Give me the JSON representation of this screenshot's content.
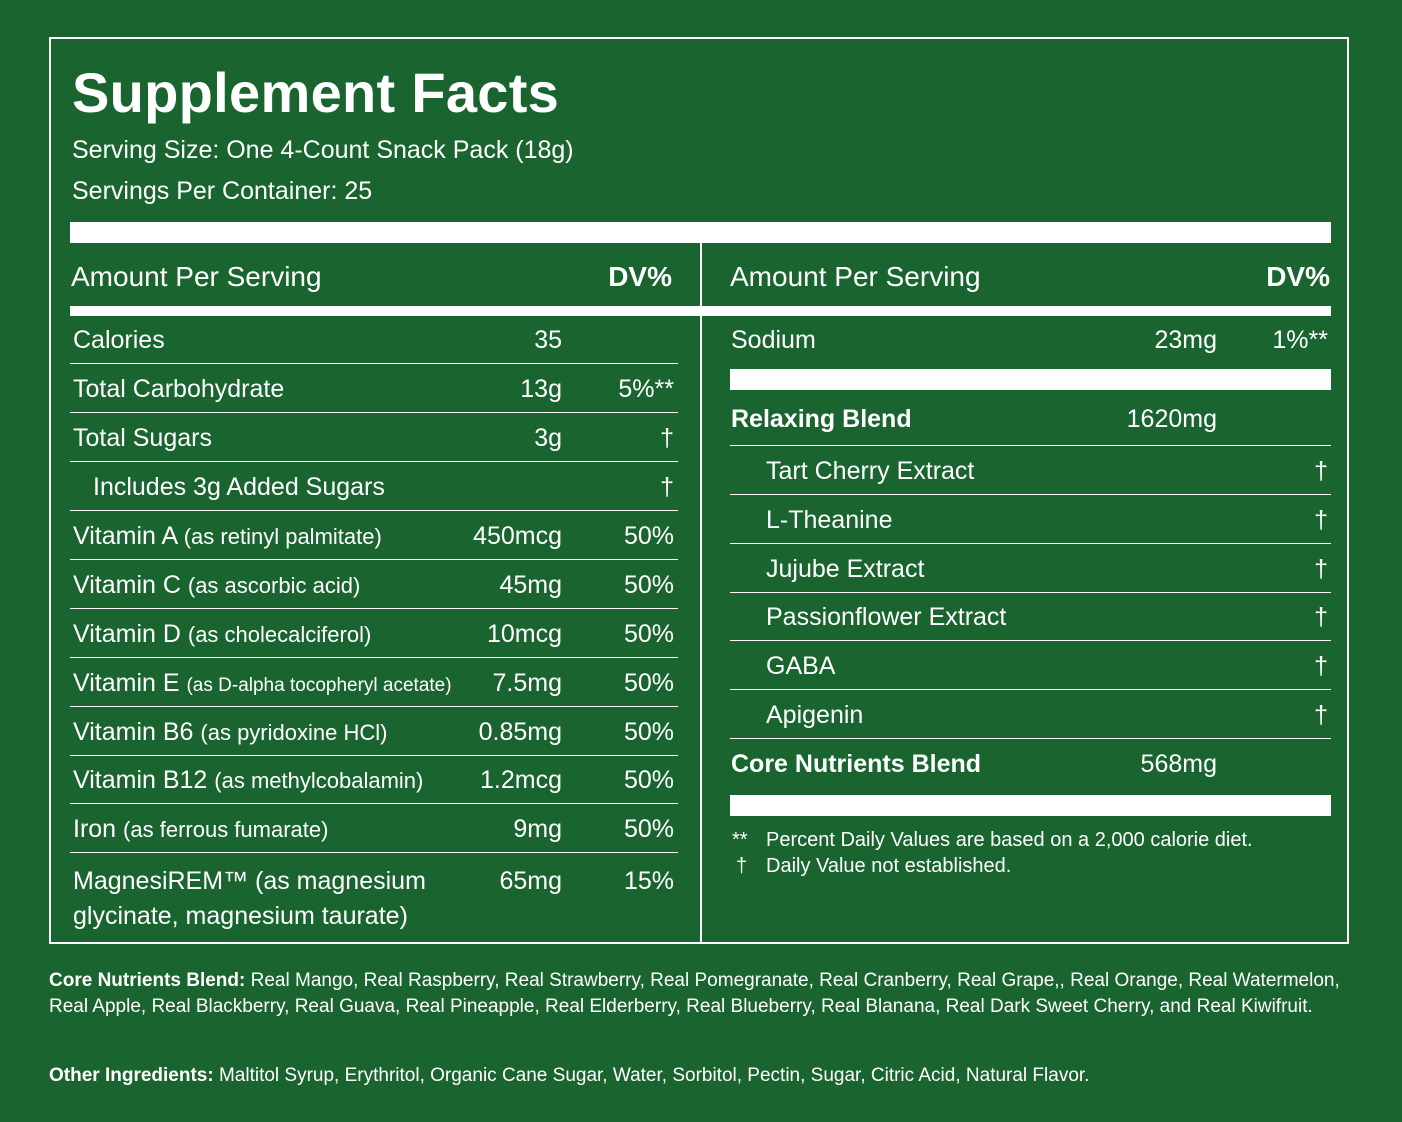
{
  "title": "Supplement Facts",
  "serving_size": "Serving Size: One 4-Count Snack Pack (18g)",
  "servings_per_container": "Servings Per Container: 25",
  "left_header": {
    "amount_label": "Amount Per Serving",
    "dv_label": "DV%"
  },
  "right_header": {
    "amount_label": "Amount Per Serving",
    "dv_label": "DV%"
  },
  "left_rows": [
    {
      "name": "Calories",
      "sub": "",
      "amount": "35",
      "dv": ""
    },
    {
      "name": "Total Carbohydrate",
      "sub": "",
      "amount": "13g",
      "dv": "5%**"
    },
    {
      "name": "Total Sugars",
      "sub": "",
      "amount": "3g",
      "dv": "†"
    },
    {
      "name": "Includes 3g Added Sugars",
      "sub": "",
      "amount": "",
      "dv": "†"
    },
    {
      "name": "Vitamin A",
      "sub": "(as retinyl palmitate)",
      "amount": "450mcg",
      "dv": "50%"
    },
    {
      "name": "Vitamin C",
      "sub": "(as ascorbic acid)",
      "amount": "45mg",
      "dv": "50%"
    },
    {
      "name": "Vitamin D",
      "sub": "(as cholecalciferol)",
      "amount": "10mcg",
      "dv": "50%"
    },
    {
      "name": "Vitamin E",
      "sub": "(as D-alpha tocopheryl acetate)",
      "amount": "7.5mg",
      "dv": "50%"
    },
    {
      "name": "Vitamin B6",
      "sub": "(as pyridoxine HCl)",
      "amount": "0.85mg",
      "dv": "50%"
    },
    {
      "name": "Vitamin B12",
      "sub": "(as methylcobalamin)",
      "amount": "1.2mcg",
      "dv": "50%"
    },
    {
      "name": "Iron",
      "sub": "(as ferrous fumarate)",
      "amount": "9mg",
      "dv": "50%"
    },
    {
      "name": "MagnesiREM™ (as magnesium",
      "name_line2": "glycinate, magnesium taurate)",
      "amount": "65mg",
      "dv": "15%"
    }
  ],
  "right_rows": {
    "sodium": {
      "name": "Sodium",
      "amount": "23mg",
      "dv": "1%**"
    },
    "relaxing_blend": {
      "name": "Relaxing Blend",
      "amount": "1620mg"
    },
    "relaxing_items": [
      {
        "name": "Tart Cherry Extract",
        "dv": "†"
      },
      {
        "name": "L-Theanine",
        "dv": "†"
      },
      {
        "name": "Jujube Extract",
        "dv": "†"
      },
      {
        "name": "Passionflower Extract",
        "dv": "†"
      },
      {
        "name": "GABA",
        "dv": "†"
      },
      {
        "name": "Apigenin",
        "dv": "†"
      }
    ],
    "core_blend": {
      "name": "Core Nutrients Blend",
      "amount": "568mg"
    }
  },
  "footnotes": [
    {
      "mark": "**",
      "text": "Percent Daily Values are based on a 2,000 calorie diet."
    },
    {
      "mark": "†",
      "text": "Daily Value not established."
    }
  ],
  "core_ingredients": {
    "label": "Core Nutrients Blend:",
    "text": " Real Mango, Real Raspberry, Real Strawberry, Real Pomegranate, Real Cranberry, Real Grape,, Real Orange, Real Watermelon, Real Apple, Real Blackberry, Real Guava, Real Pineapple, Real Elderberry, Real Blueberry, Real Blanana, Real Dark Sweet Cherry, and Real Kiwifruit."
  },
  "other_ingredients": {
    "label": "Other Ingredients:",
    "text": " Maltitol Syrup, Erythritol, Organic Cane Sugar, Water, Sorbitol, Pectin, Sugar, Citric Acid, Natural Flavor."
  },
  "colors": {
    "background": "#1a6430",
    "foreground": "#ffffff"
  }
}
